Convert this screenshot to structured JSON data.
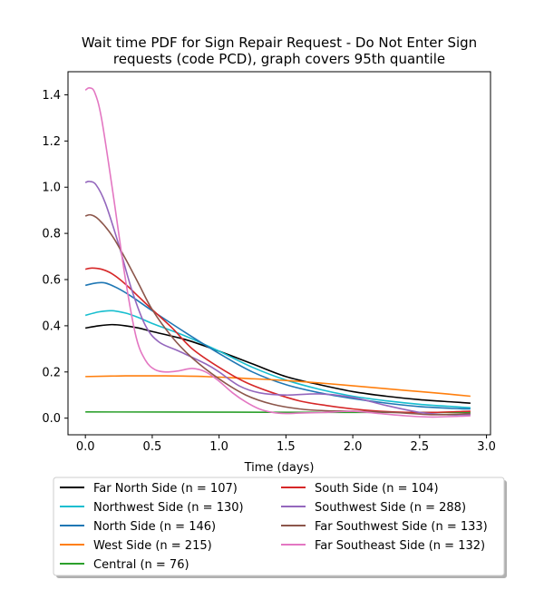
{
  "chart_data": {
    "type": "line",
    "title": "Wait time PDF for Sign Repair Request - Do Not Enter Sign requests (code PCD), graph covers 95th quantile",
    "title_lines": [
      "Wait time PDF for Sign Repair Request - Do Not Enter Sign",
      "requests (code PCD), graph covers 95th quantile"
    ],
    "xlabel": "Time (days)",
    "ylabel": "",
    "xlim": [
      -0.13,
      3.03
    ],
    "ylim": [
      -0.072,
      1.5
    ],
    "xticks": [
      0.0,
      0.5,
      1.0,
      1.5,
      2.0,
      2.5,
      3.0
    ],
    "xtick_labels": [
      "0.0",
      "0.5",
      "1.0",
      "1.5",
      "2.0",
      "2.5",
      "3.0"
    ],
    "yticks": [
      0.0,
      0.2,
      0.4,
      0.6,
      0.8,
      1.0,
      1.2,
      1.4
    ],
    "ytick_labels": [
      "0.0",
      "0.2",
      "0.4",
      "0.6",
      "0.8",
      "1.0",
      "1.2",
      "1.4"
    ],
    "grid": false,
    "legend_placement": "below, two columns",
    "series": [
      {
        "name": "Far North Side (n = 107)",
        "color": "#000000",
        "points": [
          [
            0,
            0.39
          ],
          [
            0.1,
            0.4
          ],
          [
            0.2,
            0.405
          ],
          [
            0.3,
            0.4
          ],
          [
            0.4,
            0.39
          ],
          [
            0.5,
            0.375
          ],
          [
            0.75,
            0.34
          ],
          [
            1.0,
            0.29
          ],
          [
            1.25,
            0.235
          ],
          [
            1.5,
            0.18
          ],
          [
            1.75,
            0.145
          ],
          [
            2.0,
            0.115
          ],
          [
            2.25,
            0.095
          ],
          [
            2.5,
            0.08
          ],
          [
            2.75,
            0.07
          ],
          [
            2.88,
            0.065
          ]
        ]
      },
      {
        "name": "Northwest Side (n = 130)",
        "color": "#17becf",
        "points": [
          [
            0,
            0.445
          ],
          [
            0.1,
            0.46
          ],
          [
            0.2,
            0.465
          ],
          [
            0.3,
            0.455
          ],
          [
            0.4,
            0.435
          ],
          [
            0.5,
            0.41
          ],
          [
            0.75,
            0.355
          ],
          [
            1.0,
            0.29
          ],
          [
            1.25,
            0.22
          ],
          [
            1.5,
            0.165
          ],
          [
            1.75,
            0.125
          ],
          [
            2.0,
            0.095
          ],
          [
            2.25,
            0.075
          ],
          [
            2.5,
            0.06
          ],
          [
            2.75,
            0.05
          ],
          [
            2.88,
            0.045
          ]
        ]
      },
      {
        "name": "North Side (n = 146)",
        "color": "#1f77b4",
        "points": [
          [
            0,
            0.575
          ],
          [
            0.08,
            0.585
          ],
          [
            0.15,
            0.585
          ],
          [
            0.25,
            0.56
          ],
          [
            0.35,
            0.525
          ],
          [
            0.5,
            0.465
          ],
          [
            0.75,
            0.37
          ],
          [
            1.0,
            0.28
          ],
          [
            1.25,
            0.2
          ],
          [
            1.5,
            0.145
          ],
          [
            1.75,
            0.11
          ],
          [
            2.0,
            0.085
          ],
          [
            2.25,
            0.065
          ],
          [
            2.5,
            0.05
          ],
          [
            2.75,
            0.042
          ],
          [
            2.88,
            0.04
          ]
        ]
      },
      {
        "name": "West Side (n = 215)",
        "color": "#ff7f0e",
        "points": [
          [
            0,
            0.18
          ],
          [
            0.3,
            0.183
          ],
          [
            0.6,
            0.183
          ],
          [
            0.9,
            0.18
          ],
          [
            1.2,
            0.172
          ],
          [
            1.5,
            0.163
          ],
          [
            1.8,
            0.15
          ],
          [
            2.1,
            0.135
          ],
          [
            2.4,
            0.12
          ],
          [
            2.7,
            0.105
          ],
          [
            2.88,
            0.095
          ]
        ]
      },
      {
        "name": "Central (n = 76)",
        "color": "#2ca02c",
        "points": [
          [
            0,
            0.027
          ],
          [
            1.0,
            0.026
          ],
          [
            2.0,
            0.025
          ],
          [
            2.88,
            0.025
          ]
        ]
      },
      {
        "name": "South Side (n = 104)",
        "color": "#d62728",
        "points": [
          [
            0,
            0.645
          ],
          [
            0.05,
            0.65
          ],
          [
            0.12,
            0.645
          ],
          [
            0.2,
            0.625
          ],
          [
            0.3,
            0.58
          ],
          [
            0.4,
            0.525
          ],
          [
            0.5,
            0.47
          ],
          [
            0.65,
            0.39
          ],
          [
            0.8,
            0.3
          ],
          [
            1.0,
            0.22
          ],
          [
            1.2,
            0.155
          ],
          [
            1.4,
            0.11
          ],
          [
            1.6,
            0.075
          ],
          [
            1.8,
            0.055
          ],
          [
            2.0,
            0.04
          ],
          [
            2.2,
            0.03
          ],
          [
            2.4,
            0.025
          ],
          [
            2.6,
            0.025
          ],
          [
            2.88,
            0.03
          ]
        ]
      },
      {
        "name": "Southwest Side (n = 288)",
        "color": "#9467bd",
        "points": [
          [
            0,
            1.02
          ],
          [
            0.03,
            1.025
          ],
          [
            0.08,
            1.01
          ],
          [
            0.15,
            0.93
          ],
          [
            0.25,
            0.75
          ],
          [
            0.35,
            0.55
          ],
          [
            0.45,
            0.4
          ],
          [
            0.55,
            0.33
          ],
          [
            0.7,
            0.29
          ],
          [
            0.9,
            0.235
          ],
          [
            1.0,
            0.2
          ],
          [
            1.15,
            0.14
          ],
          [
            1.3,
            0.11
          ],
          [
            1.5,
            0.1
          ],
          [
            1.75,
            0.105
          ],
          [
            2.0,
            0.09
          ],
          [
            2.25,
            0.055
          ],
          [
            2.5,
            0.025
          ],
          [
            2.7,
            0.015
          ],
          [
            2.88,
            0.015
          ]
        ]
      },
      {
        "name": "Far Southwest Side (n = 133)",
        "color": "#8c564b",
        "points": [
          [
            0,
            0.875
          ],
          [
            0.04,
            0.88
          ],
          [
            0.1,
            0.86
          ],
          [
            0.2,
            0.79
          ],
          [
            0.3,
            0.69
          ],
          [
            0.4,
            0.58
          ],
          [
            0.5,
            0.47
          ],
          [
            0.65,
            0.35
          ],
          [
            0.8,
            0.26
          ],
          [
            1.0,
            0.17
          ],
          [
            1.2,
            0.1
          ],
          [
            1.4,
            0.06
          ],
          [
            1.6,
            0.04
          ],
          [
            1.8,
            0.032
          ],
          [
            2.0,
            0.03
          ],
          [
            2.3,
            0.025
          ],
          [
            2.6,
            0.015
          ],
          [
            2.88,
            0.02
          ]
        ]
      },
      {
        "name": "Far Southeast Side (n = 132)",
        "color": "#e377c2",
        "points": [
          [
            0,
            1.42
          ],
          [
            0.03,
            1.43
          ],
          [
            0.07,
            1.41
          ],
          [
            0.12,
            1.3
          ],
          [
            0.2,
            1.0
          ],
          [
            0.3,
            0.6
          ],
          [
            0.38,
            0.35
          ],
          [
            0.45,
            0.25
          ],
          [
            0.52,
            0.21
          ],
          [
            0.6,
            0.2
          ],
          [
            0.7,
            0.205
          ],
          [
            0.8,
            0.215
          ],
          [
            0.9,
            0.2
          ],
          [
            1.0,
            0.16
          ],
          [
            1.1,
            0.11
          ],
          [
            1.2,
            0.07
          ],
          [
            1.3,
            0.04
          ],
          [
            1.4,
            0.025
          ],
          [
            1.5,
            0.02
          ],
          [
            1.6,
            0.022
          ],
          [
            1.8,
            0.025
          ],
          [
            2.0,
            0.03
          ],
          [
            2.2,
            0.02
          ],
          [
            2.4,
            0.01
          ],
          [
            2.6,
            0.005
          ],
          [
            2.88,
            0.01
          ]
        ]
      }
    ]
  }
}
